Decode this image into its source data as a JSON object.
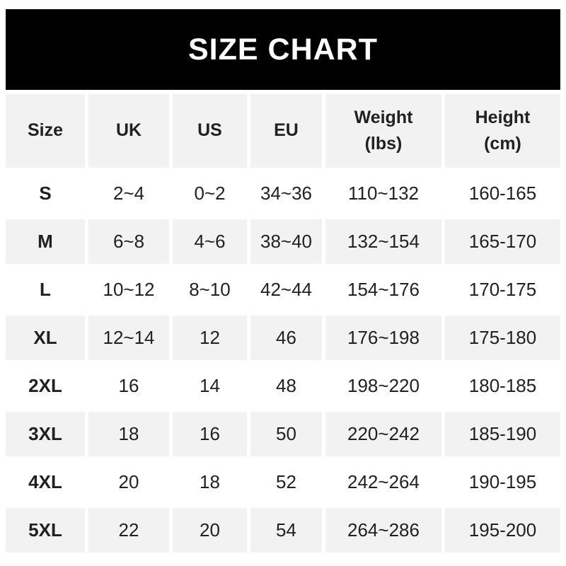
{
  "title": "SIZE CHART",
  "colors": {
    "title_bar_bg": "#000000",
    "title_text": "#ffffff",
    "alt_row_bg": "#f2f2f2",
    "row_bg": "#ffffff",
    "text": "#212121"
  },
  "chart_data": {
    "type": "table",
    "title": "SIZE CHART",
    "columns": [
      "Size",
      "UK",
      "US",
      "EU",
      "Weight (lbs)",
      "Height (cm)"
    ],
    "column_display_labels": [
      "Size",
      "UK",
      "US",
      "EU",
      "Weight\n(lbs)",
      "Height\n(cm)"
    ],
    "rows": [
      [
        "S",
        "2~4",
        "0~2",
        "34~36",
        "110~132",
        "160-165"
      ],
      [
        "M",
        "6~8",
        "4~6",
        "38~40",
        "132~154",
        "165-170"
      ],
      [
        "L",
        "10~12",
        "8~10",
        "42~44",
        "154~176",
        "170-175"
      ],
      [
        "XL",
        "12~14",
        "12",
        "46",
        "176~198",
        "175-180"
      ],
      [
        "2XL",
        "16",
        "14",
        "48",
        "198~220",
        "180-185"
      ],
      [
        "3XL",
        "18",
        "16",
        "50",
        "220~242",
        "185-190"
      ],
      [
        "4XL",
        "20",
        "18",
        "52",
        "242~264",
        "190-195"
      ],
      [
        "5XL",
        "22",
        "20",
        "54",
        "264~286",
        "195-200"
      ]
    ],
    "layout": {
      "alternating_row_shading": true,
      "shaded_rows": [
        "header",
        "M",
        "XL",
        "3XL",
        "5XL"
      ],
      "grid_lines": "white gaps between cells"
    }
  }
}
